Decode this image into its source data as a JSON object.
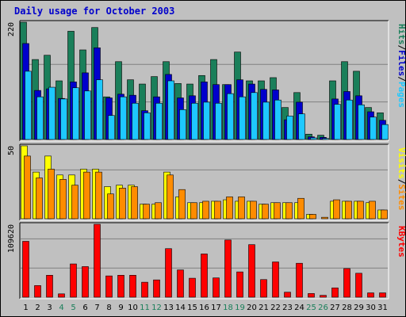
{
  "title": "Daily usage for October 2003",
  "colors": {
    "hits": "#1a7f5a",
    "files": "#0000cc",
    "pages": "#1ec8ff",
    "visits": "#ffff00",
    "sites": "#ff8c00",
    "kbytes": "#ff0000",
    "weekend_label": "#1a7f5a",
    "weekday_label": "#000000",
    "panel_bg": "#c0c0c0",
    "grid": "#808080"
  },
  "chart_data": [
    {
      "type": "bar",
      "panel": "top",
      "ymax_label": "220",
      "legend": [
        "Pages",
        "Files",
        "Hits"
      ],
      "categories": [
        "1",
        "2",
        "3",
        "4",
        "5",
        "6",
        "7",
        "8",
        "9",
        "10",
        "11",
        "12",
        "13",
        "14",
        "15",
        "16",
        "17",
        "18",
        "19",
        "20",
        "21",
        "22",
        "23",
        "24",
        "25",
        "26",
        "27",
        "28",
        "29",
        "30",
        "31"
      ],
      "series": [
        {
          "name": "Hits",
          "values": [
            220,
            150,
            158,
            110,
            203,
            168,
            210,
            80,
            146,
            112,
            104,
            118,
            146,
            105,
            104,
            120,
            150,
            103,
            164,
            110,
            110,
            116,
            60,
            88,
            10,
            8,
            110,
            146,
            128,
            60,
            50
          ]
        },
        {
          "name": "Files",
          "values": [
            180,
            92,
            95,
            77,
            108,
            125,
            172,
            78,
            85,
            83,
            54,
            80,
            122,
            78,
            82,
            108,
            103,
            103,
            112,
            104,
            94,
            93,
            37,
            70,
            5,
            4,
            76,
            90,
            82,
            52,
            36
          ]
        },
        {
          "name": "Pages",
          "values": [
            128,
            80,
            98,
            76,
            97,
            91,
            112,
            45,
            80,
            68,
            50,
            68,
            110,
            56,
            68,
            70,
            68,
            86,
            80,
            88,
            70,
            74,
            44,
            48,
            3,
            2,
            66,
            74,
            65,
            42,
            28
          ]
        }
      ]
    },
    {
      "type": "bar",
      "panel": "middle",
      "ymax_label": "50",
      "legend": [
        "Sites",
        "Visits"
      ],
      "categories": [
        "1",
        "2",
        "3",
        "4",
        "5",
        "6",
        "7",
        "8",
        "9",
        "10",
        "11",
        "12",
        "13",
        "14",
        "15",
        "16",
        "17",
        "18",
        "19",
        "20",
        "21",
        "22",
        "23",
        "24",
        "25",
        "26",
        "27",
        "28",
        "29",
        "30",
        "31"
      ],
      "series": [
        {
          "name": "Visits",
          "values": [
            50,
            32,
            43,
            30,
            30,
            34,
            34,
            22,
            23,
            23,
            10,
            10,
            32,
            15,
            11,
            11,
            12,
            13,
            12,
            12,
            10,
            11,
            11,
            11,
            3,
            0,
            12,
            12,
            12,
            11,
            6
          ]
        },
        {
          "name": "Sites",
          "values": [
            43,
            28,
            34,
            27,
            23,
            32,
            32,
            17,
            21,
            22,
            10,
            11,
            30,
            20,
            11,
            12,
            12,
            15,
            15,
            12,
            10,
            11,
            11,
            14,
            3,
            1,
            13,
            12,
            12,
            12,
            6
          ]
        }
      ]
    },
    {
      "type": "bar",
      "panel": "bottom",
      "ymax_label": "109620",
      "legend": [
        "KBytes"
      ],
      "categories": [
        "1",
        "2",
        "3",
        "4",
        "5",
        "6",
        "7",
        "8",
        "9",
        "10",
        "11",
        "12",
        "13",
        "14",
        "15",
        "16",
        "17",
        "18",
        "19",
        "20",
        "21",
        "22",
        "23",
        "24",
        "25",
        "26",
        "27",
        "28",
        "29",
        "30",
        "31"
      ],
      "series": [
        {
          "name": "KBytes",
          "values": [
            84000,
            17500,
            33000,
            5000,
            50000,
            46000,
            109620,
            32000,
            33000,
            33000,
            22500,
            26000,
            73000,
            41000,
            28500,
            65000,
            29000,
            86000,
            38000,
            79000,
            26500,
            53000,
            7500,
            51000,
            5500,
            2800,
            14000,
            43000,
            36000,
            6500,
            6500
          ]
        }
      ]
    }
  ]
}
